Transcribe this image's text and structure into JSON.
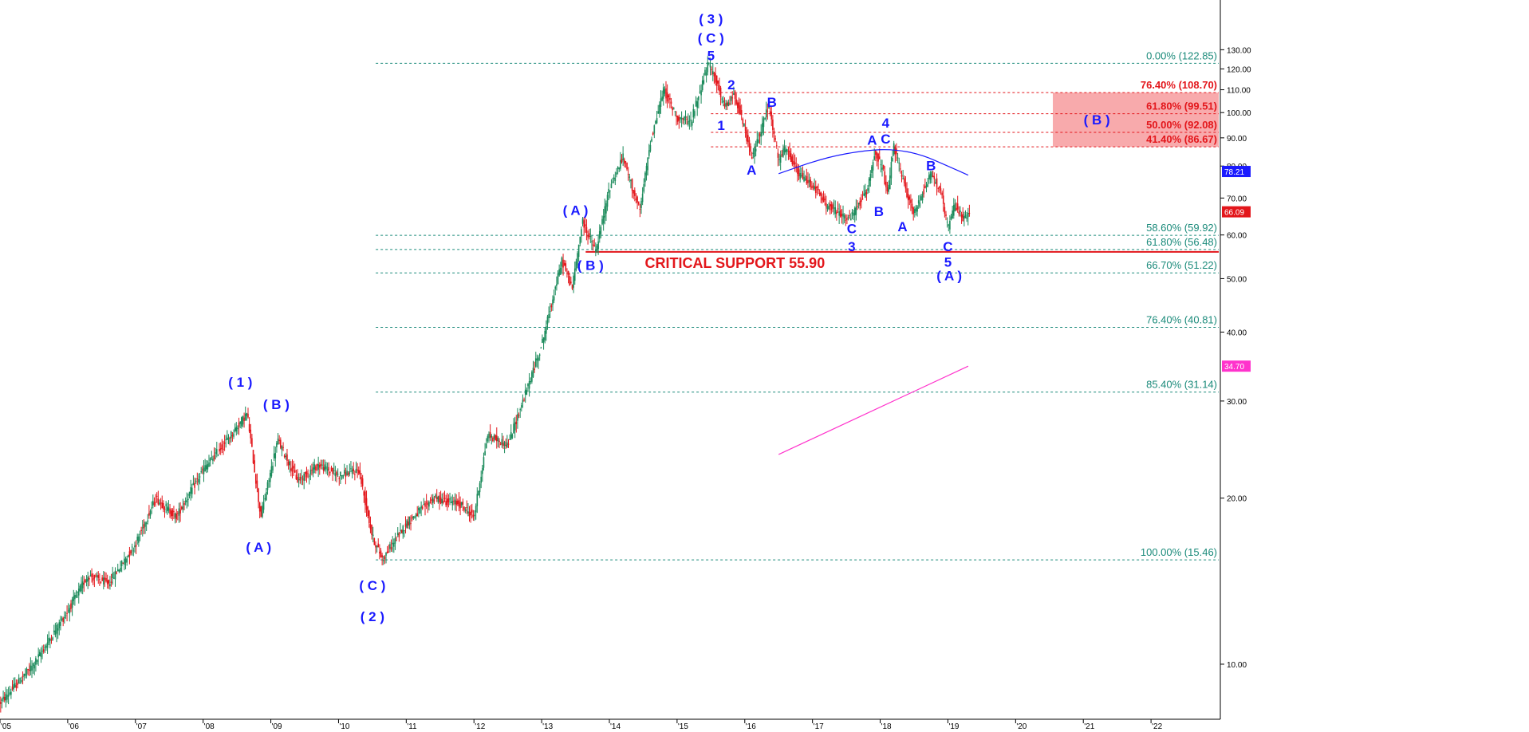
{
  "chart_data": {
    "type": "candlestick",
    "scale": "log",
    "ylim": [
      8,
      160
    ],
    "x_range": [
      2005.0,
      2023.0
    ],
    "x_ticks": [
      {
        "year": 2005,
        "label": "'05"
      },
      {
        "year": 2006,
        "label": "'06"
      },
      {
        "year": 2007,
        "label": "'07"
      },
      {
        "year": 2008,
        "label": "'08"
      },
      {
        "year": 2009,
        "label": "'09"
      },
      {
        "year": 2010,
        "label": "'10"
      },
      {
        "year": 2011,
        "label": "'11"
      },
      {
        "year": 2012,
        "label": "'12"
      },
      {
        "year": 2013,
        "label": "'13"
      },
      {
        "year": 2014,
        "label": "'14"
      },
      {
        "year": 2015,
        "label": "'15"
      },
      {
        "year": 2016,
        "label": "'16"
      },
      {
        "year": 2017,
        "label": "'17"
      },
      {
        "year": 2018,
        "label": "'18"
      },
      {
        "year": 2019,
        "label": "'19"
      },
      {
        "year": 2020,
        "label": "'20"
      },
      {
        "year": 2021,
        "label": "'21"
      },
      {
        "year": 2022,
        "label": "'22"
      }
    ],
    "y_ticks": [
      {
        "value": 10,
        "label": "10.00"
      },
      {
        "value": 20,
        "label": "20.00"
      },
      {
        "value": 30,
        "label": "30.00"
      },
      {
        "value": 40,
        "label": "40.00"
      },
      {
        "value": 50,
        "label": "50.00"
      },
      {
        "value": 60,
        "label": "60.00"
      },
      {
        "value": 70,
        "label": "70.00"
      },
      {
        "value": 80,
        "label": "80.00"
      },
      {
        "value": 90,
        "label": "90.00"
      },
      {
        "value": 100,
        "label": "100.00"
      },
      {
        "value": 110,
        "label": "110.00"
      },
      {
        "value": 120,
        "label": "120.00"
      },
      {
        "value": 130,
        "label": "130.00"
      }
    ],
    "price_path": [
      [
        2005.0,
        8.5
      ],
      [
        2005.5,
        10.0
      ],
      [
        2006.0,
        12.5
      ],
      [
        2006.3,
        14.5
      ],
      [
        2006.6,
        14.0
      ],
      [
        2007.0,
        16.5
      ],
      [
        2007.3,
        20.0
      ],
      [
        2007.6,
        18.5
      ],
      [
        2008.0,
        22.5
      ],
      [
        2008.3,
        25.0
      ],
      [
        2008.65,
        28.5
      ],
      [
        2008.85,
        18.5
      ],
      [
        2009.1,
        25.5
      ],
      [
        2009.4,
        21.5
      ],
      [
        2009.7,
        23.0
      ],
      [
        2010.0,
        22.0
      ],
      [
        2010.3,
        22.5
      ],
      [
        2010.5,
        17.0
      ],
      [
        2010.65,
        15.5
      ],
      [
        2011.0,
        18.0
      ],
      [
        2011.4,
        20.0
      ],
      [
        2011.8,
        19.5
      ],
      [
        2012.0,
        18.5
      ],
      [
        2012.2,
        26.0
      ],
      [
        2012.5,
        25.0
      ],
      [
        2012.8,
        32.0
      ],
      [
        2013.0,
        38.0
      ],
      [
        2013.3,
        54.0
      ],
      [
        2013.45,
        48.0
      ],
      [
        2013.6,
        63.5
      ],
      [
        2013.8,
        56.0
      ],
      [
        2014.0,
        73.0
      ],
      [
        2014.2,
        83.0
      ],
      [
        2014.45,
        66.0
      ],
      [
        2014.6,
        88.0
      ],
      [
        2014.8,
        110.0
      ],
      [
        2015.0,
        98.0
      ],
      [
        2015.2,
        96.0
      ],
      [
        2015.45,
        122.0
      ],
      [
        2015.55,
        117.0
      ],
      [
        2015.7,
        102.0
      ],
      [
        2015.85,
        108.0
      ],
      [
        2016.0,
        93.0
      ],
      [
        2016.1,
        82.5
      ],
      [
        2016.2,
        90.0
      ],
      [
        2016.35,
        103.0
      ],
      [
        2016.5,
        82.0
      ],
      [
        2016.6,
        86.0
      ],
      [
        2016.8,
        77.0
      ],
      [
        2017.0,
        74.0
      ],
      [
        2017.2,
        68.0
      ],
      [
        2017.55,
        64.0
      ],
      [
        2017.8,
        72.0
      ],
      [
        2017.92,
        85.0
      ],
      [
        2018.05,
        78.0
      ],
      [
        2018.1,
        70.0
      ],
      [
        2018.2,
        87.0
      ],
      [
        2018.35,
        74.0
      ],
      [
        2018.5,
        65.5
      ],
      [
        2018.75,
        78.0
      ],
      [
        2018.9,
        71.0
      ],
      [
        2019.0,
        61.5
      ],
      [
        2019.1,
        68.0
      ],
      [
        2019.25,
        64.0
      ],
      [
        2019.33,
        66.1
      ]
    ],
    "horizontal_levels": [
      {
        "label": "0.00% (122.85)",
        "value": 122.85,
        "color": "#1a8a7a",
        "x_start": 2010.55,
        "bold": false
      },
      {
        "label": "76.40% (108.70)",
        "value": 108.7,
        "color": "#e3161b",
        "x_start": 2015.5,
        "bold": true
      },
      {
        "label": "61.80% (99.51)",
        "value": 99.51,
        "color": "#e3161b",
        "x_start": 2015.5,
        "bold": true
      },
      {
        "label": "50.00% (92.08)",
        "value": 92.08,
        "color": "#e3161b",
        "x_start": 2015.5,
        "bold": true
      },
      {
        "label": "41.40% (86.67)",
        "value": 86.67,
        "color": "#e3161b",
        "x_start": 2015.5,
        "bold": true
      },
      {
        "label": "58.60% (59.92)",
        "value": 59.92,
        "color": "#1a8a7a",
        "x_start": 2010.55,
        "bold": false
      },
      {
        "label": "61.80% (56.48)",
        "value": 56.48,
        "color": "#1a8a7a",
        "x_start": 2010.55,
        "bold": false
      },
      {
        "label": "66.70% (51.22)",
        "value": 51.22,
        "color": "#1a8a7a",
        "x_start": 2010.55,
        "bold": false
      },
      {
        "label": "76.40% (40.81)",
        "value": 40.81,
        "color": "#1a8a7a",
        "x_start": 2010.55,
        "bold": false
      },
      {
        "label": "85.40% (31.14)",
        "value": 31.14,
        "color": "#1a8a7a",
        "x_start": 2010.55,
        "bold": false
      },
      {
        "label": "100.00% (15.46)",
        "value": 15.46,
        "color": "#1a8a7a",
        "x_start": 2010.55,
        "bold": false
      }
    ],
    "critical_support": {
      "label": "CRITICAL SUPPORT 55.90",
      "value": 55.9,
      "x_start": 2013.65,
      "color": "#e3161b"
    },
    "target_zone": {
      "label": "( B )",
      "x_start": 2020.55,
      "x_end": 2023.0,
      "y_low": 86.67,
      "y_high": 108.7,
      "color": "#f7a1a3"
    },
    "arc": {
      "color": "#1a1aff",
      "points": [
        [
          2016.5,
          77.5
        ],
        [
          2017.2,
          83.0
        ],
        [
          2017.8,
          85.5
        ],
        [
          2018.2,
          85.8
        ],
        [
          2018.6,
          84.0
        ],
        [
          2019.0,
          80.0
        ],
        [
          2019.3,
          77.0
        ]
      ]
    },
    "pink_trendline": {
      "color": "#ff33cc",
      "points": [
        [
          2016.5,
          24.0
        ],
        [
          2019.3,
          34.7
        ]
      ]
    },
    "wave_labels": [
      {
        "text": "( 1 )",
        "x": 2008.55,
        "y": 32.5
      },
      {
        "text": "( A )",
        "x": 2008.82,
        "y": 16.3
      },
      {
        "text": "( B )",
        "x": 2009.08,
        "y": 29.6
      },
      {
        "text": "( C )",
        "x": 2010.5,
        "y": 13.9
      },
      {
        "text": "( 2 )",
        "x": 2010.5,
        "y": 12.2
      },
      {
        "text": "( A )",
        "x": 2013.5,
        "y": 66.6
      },
      {
        "text": "( B )",
        "x": 2013.72,
        "y": 52.9
      },
      {
        "text": "( 3 )",
        "x": 2015.5,
        "y": 148.0
      },
      {
        "text": "( C )",
        "x": 2015.5,
        "y": 136.5
      },
      {
        "text": "5",
        "x": 2015.5,
        "y": 127.0
      },
      {
        "text": "2",
        "x": 2015.8,
        "y": 112.5
      },
      {
        "text": "1",
        "x": 2015.65,
        "y": 94.8
      },
      {
        "text": "B",
        "x": 2016.4,
        "y": 104.5
      },
      {
        "text": "A",
        "x": 2016.1,
        "y": 78.8
      },
      {
        "text": "C",
        "x": 2017.58,
        "y": 61.7
      },
      {
        "text": "3",
        "x": 2017.58,
        "y": 57.2
      },
      {
        "text": "A",
        "x": 2017.88,
        "y": 89.2
      },
      {
        "text": "B",
        "x": 2017.98,
        "y": 66.2
      },
      {
        "text": "4",
        "x": 2018.08,
        "y": 95.9
      },
      {
        "text": "C",
        "x": 2018.08,
        "y": 89.7
      },
      {
        "text": "A",
        "x": 2018.33,
        "y": 62.2
      },
      {
        "text": "B",
        "x": 2018.75,
        "y": 80.2
      },
      {
        "text": "C",
        "x": 2019.0,
        "y": 57.2
      },
      {
        "text": "5",
        "x": 2019.0,
        "y": 53.6
      },
      {
        "text": "( A )",
        "x": 2019.02,
        "y": 50.7
      }
    ],
    "price_markers": [
      {
        "text": "78.21",
        "value": 78.21,
        "color": "#1a1aff"
      },
      {
        "text": "66.09",
        "value": 66.09,
        "color": "#e3161b"
      },
      {
        "text": "34.70",
        "value": 34.7,
        "color": "#ff33cc"
      }
    ],
    "colors": {
      "up": "#1a8a5a",
      "down": "#e3161b",
      "wave_label": "#1a1aff",
      "fib_teal": "#1a8a7a",
      "axis": "#000000"
    }
  }
}
